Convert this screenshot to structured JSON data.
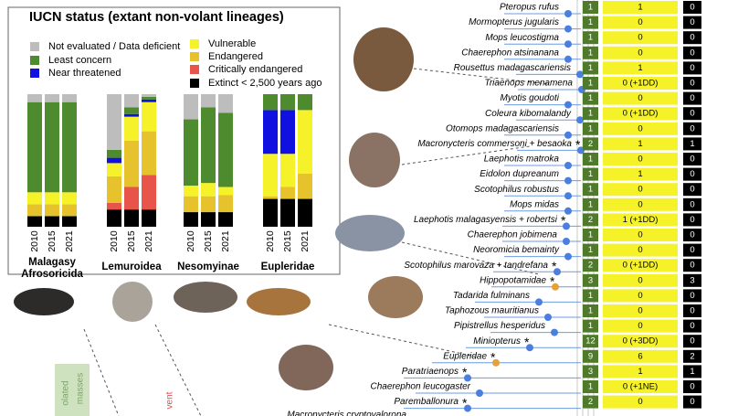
{
  "chart_data": {
    "type": "bar",
    "stacked": true,
    "title": "IUCN status (extant non-volant lineages)",
    "ylim": [
      0,
      100
    ],
    "groups": [
      {
        "label": [
          "Malagasy",
          "Afrosoricida"
        ],
        "categories": [
          "2010",
          "2015",
          "2021"
        ]
      },
      {
        "label": [
          "Lemuroidea"
        ],
        "categories": [
          "2010",
          "2015",
          "2021"
        ]
      },
      {
        "label": [
          "Nesomyinae"
        ],
        "categories": [
          "2010",
          "2015",
          "2021"
        ]
      },
      {
        "label": [
          "Eupleridae"
        ],
        "categories": [
          "2010",
          "2015",
          "2021"
        ]
      }
    ],
    "series": [
      {
        "name": "Not evaluated / Data deficient",
        "color": "#bdbdbd",
        "values": [
          6,
          6,
          6,
          42,
          10,
          2,
          19,
          10,
          14,
          0,
          0,
          0
        ]
      },
      {
        "name": "Least concern",
        "color": "#4e8b2e",
        "values": [
          68,
          68,
          68,
          6,
          5,
          2,
          50,
          57,
          56,
          12,
          12,
          12
        ]
      },
      {
        "name": "Near threatened",
        "color": "#1010e0",
        "values": [
          0,
          0,
          0,
          4,
          2,
          2,
          0,
          0,
          0,
          33,
          33,
          0
        ]
      },
      {
        "name": "Vulnerable",
        "color": "#f5f22a",
        "values": [
          9,
          9,
          9,
          10,
          18,
          22,
          8,
          10,
          6,
          32,
          25,
          48
        ]
      },
      {
        "name": "Endangered",
        "color": "#e6c22c",
        "values": [
          9,
          9,
          9,
          20,
          35,
          33,
          12,
          12,
          13,
          2,
          9,
          19
        ]
      },
      {
        "name": "Critically endangered",
        "color": "#e8534a",
        "values": [
          0,
          0,
          0,
          5,
          17,
          26,
          0,
          0,
          0,
          0,
          0,
          0
        ]
      },
      {
        "name": "Extinct < 2,500 years ago",
        "color": "#000000",
        "values": [
          8,
          8,
          8,
          13,
          13,
          13,
          11,
          11,
          11,
          21,
          21,
          21
        ]
      }
    ]
  },
  "phylogeny": {
    "rows": [
      {
        "name": "Pteropus rufus",
        "cells": [
          1,
          1,
          0
        ]
      },
      {
        "name": "Mormopterus jugularis",
        "cells": [
          1,
          0,
          0
        ]
      },
      {
        "name": "Mops leucostigma",
        "cells": [
          1,
          0,
          0
        ]
      },
      {
        "name": "Chaerephon atsinanana",
        "cells": [
          1,
          0,
          0
        ]
      },
      {
        "name": "Rousettus madagascariensis",
        "cells": [
          1,
          1,
          0
        ]
      },
      {
        "name": "Triaenops menamena",
        "cells": [
          1,
          "0 (+1DD)",
          0
        ]
      },
      {
        "name": "Myotis goudoti",
        "cells": [
          1,
          0,
          0
        ]
      },
      {
        "name": "Coleura kibomalandy",
        "cells": [
          1,
          "0 (+1DD)",
          0
        ]
      },
      {
        "name": "Otomops madagascariensis",
        "cells": [
          1,
          0,
          0
        ]
      },
      {
        "name": "Macronycteris commersoni + besaoka",
        "note": "*",
        "cells": [
          2,
          1,
          1
        ]
      },
      {
        "name": "Laephotis matroka",
        "cells": [
          1,
          0,
          0
        ]
      },
      {
        "name": "Eidolon dupreanum",
        "cells": [
          1,
          1,
          0
        ]
      },
      {
        "name": "Scotophilus robustus",
        "cells": [
          1,
          0,
          0
        ]
      },
      {
        "name": "Mops midas",
        "cells": [
          1,
          0,
          0
        ]
      },
      {
        "name": "Laephotis malagasyensis + robertsi",
        "note": "*",
        "cells": [
          2,
          "1 (+1DD)",
          0
        ]
      },
      {
        "name": "Chaerephon jobimena",
        "cells": [
          1,
          0,
          0
        ]
      },
      {
        "name": "Neoromicia bemainty",
        "cells": [
          1,
          0,
          0
        ]
      },
      {
        "name": "Scotophilus marovaza + tandrefana",
        "note": "*",
        "cells": [
          2,
          "0 (+1DD)",
          0
        ]
      },
      {
        "name": "Hippopotamidae",
        "note": "*",
        "cells": [
          3,
          0,
          3
        ]
      },
      {
        "name": "Tadarida fulminans",
        "cells": [
          1,
          0,
          0
        ]
      },
      {
        "name": "Taphozous mauritianus",
        "cells": [
          1,
          0,
          0
        ]
      },
      {
        "name": "Pipistrellus hesperidus",
        "cells": [
          1,
          0,
          0
        ]
      },
      {
        "name": "Miniopterus",
        "note": "*",
        "cells": [
          12,
          "0 (+3DD)",
          0
        ]
      },
      {
        "name": "Eupleridae",
        "note": "*",
        "cells": [
          9,
          6,
          2
        ]
      },
      {
        "name": "Paratriaenops",
        "note": "*",
        "cells": [
          3,
          1,
          1
        ]
      },
      {
        "name": "Chaerephon leucogaster",
        "cells": [
          1,
          "0 (+1NE)",
          0
        ]
      },
      {
        "name": "Paremballonura",
        "note": "*",
        "cells": [
          2,
          0,
          0
        ]
      }
    ],
    "clipped_label": "Macronycteris cryptovalorona"
  },
  "fragments": {
    "left_box": [
      "olated",
      "masses"
    ],
    "red_label": "vent"
  }
}
